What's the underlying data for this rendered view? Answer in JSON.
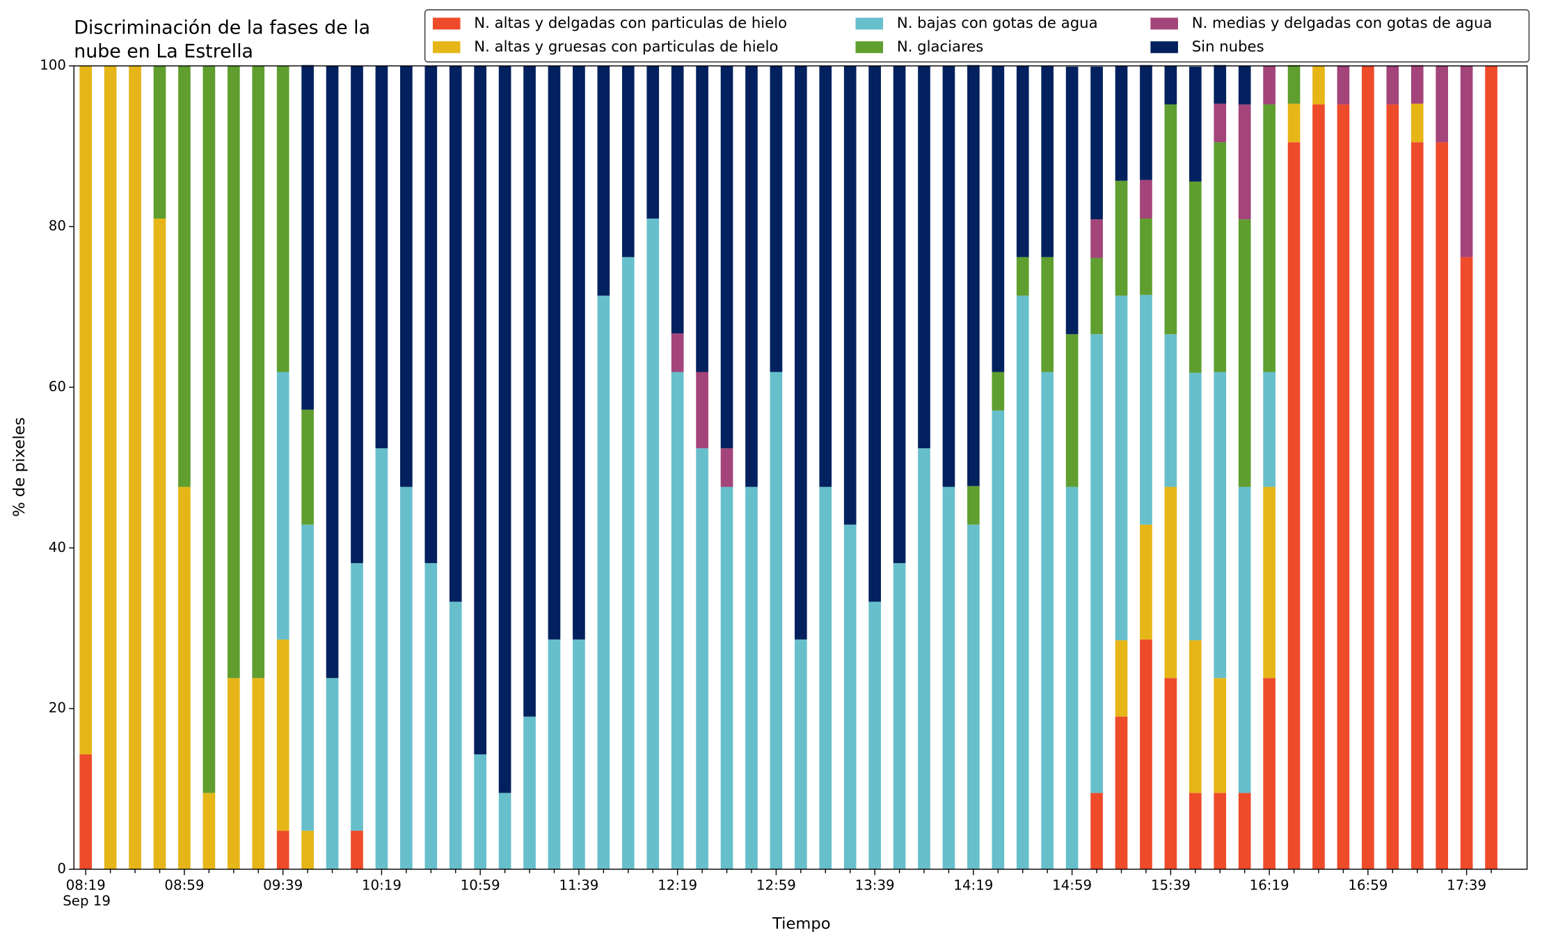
{
  "chart_data": {
    "type": "stacked_bar",
    "title": [
      "Discriminación de la fases de la",
      "nube en La Estrella"
    ],
    "xlabel": "Tiempo",
    "ylabel": "% de pixeles",
    "x_sublabel": "Sep 19",
    "categories": [
      "08:19",
      null,
      null,
      null,
      "08:59",
      null,
      null,
      null,
      "09:39",
      null,
      null,
      null,
      "10:19",
      null,
      null,
      null,
      "10:59",
      null,
      null,
      null,
      "11:39",
      null,
      null,
      null,
      "12:19",
      null,
      null,
      null,
      "12:59",
      null,
      null,
      null,
      "13:39",
      null,
      null,
      null,
      "14:19",
      null,
      null,
      null,
      "14:59",
      null,
      null,
      null,
      "15:39",
      null,
      null,
      null,
      "16:19",
      null,
      null,
      null,
      "16:59",
      null,
      null,
      null,
      "17:39",
      null
    ],
    "ylim": [
      0,
      100
    ],
    "yticks": [
      0,
      20,
      40,
      60,
      80,
      100
    ],
    "legend": "top-right",
    "series": [
      {
        "name": "N. altas y delgadas con particulas de hielo",
        "color": "#ee4b2b",
        "values": [
          14.3,
          0,
          0,
          0,
          0,
          0,
          0,
          0,
          4.8,
          0,
          0,
          4.8,
          0,
          0,
          0,
          0,
          0,
          0,
          0,
          0,
          0,
          0,
          0,
          0,
          0,
          0,
          0,
          0,
          0,
          0,
          0,
          0,
          0,
          0,
          0,
          0,
          0,
          0,
          0,
          0,
          0,
          9.5,
          19,
          28.6,
          23.8,
          9.5,
          9.5,
          9.5,
          23.8,
          90.5,
          95.2,
          95.2,
          100,
          95.2,
          90.5,
          90.5,
          76.2,
          100
        ]
      },
      {
        "name": "N. altas y gruesas con particulas de hielo",
        "color": "#e6b619",
        "values": [
          85.7,
          100,
          100,
          81,
          47.6,
          9.5,
          23.8,
          23.8,
          23.8,
          4.8,
          0,
          0,
          0,
          0,
          0,
          0,
          0,
          0,
          0,
          0,
          0,
          0,
          0,
          0,
          0,
          0,
          0,
          0,
          0,
          0,
          0,
          0,
          0,
          0,
          0,
          0,
          0,
          0,
          0,
          0,
          0,
          0,
          9.5,
          14.3,
          23.8,
          19,
          14.3,
          0,
          23.8,
          4.8,
          4.8,
          0,
          0,
          0,
          4.8,
          0,
          0,
          0
        ]
      },
      {
        "name": "N. bajas con gotas de agua",
        "color": "#67bfcb",
        "values": [
          0,
          0,
          0,
          0,
          0,
          0,
          0,
          0,
          33.3,
          38.1,
          23.8,
          33.3,
          52.4,
          47.6,
          38.1,
          33.3,
          14.3,
          9.5,
          19,
          28.6,
          28.6,
          71.4,
          76.2,
          81,
          61.9,
          52.4,
          47.6,
          47.6,
          61.9,
          28.6,
          47.6,
          42.9,
          33.3,
          38.1,
          52.4,
          47.6,
          42.9,
          57.1,
          71.4,
          61.9,
          47.6,
          57.1,
          42.9,
          28.6,
          19,
          33.3,
          38.1,
          38.1,
          14.3,
          0,
          0,
          0,
          0,
          0,
          0,
          0,
          0,
          0
        ]
      },
      {
        "name": "N. glaciares",
        "color": "#5f9e2f",
        "values": [
          0,
          0,
          0,
          19,
          52.4,
          90.5,
          76.2,
          76.2,
          38.1,
          14.3,
          0,
          0,
          0,
          0,
          0,
          0,
          0,
          0,
          0,
          0,
          0,
          0,
          0,
          0,
          0,
          0,
          0,
          0,
          0,
          0,
          0,
          0,
          0,
          0,
          0,
          0,
          4.8,
          4.8,
          4.8,
          14.3,
          19,
          9.5,
          14.3,
          9.5,
          28.6,
          23.8,
          28.6,
          33.3,
          33.3,
          4.8,
          0,
          0,
          0,
          0,
          0,
          0,
          0,
          0
        ]
      },
      {
        "name": "N. medias y delgadas con gotas de agua",
        "color": "#a3447a",
        "values": [
          0,
          0,
          0,
          0,
          0,
          0,
          0,
          0,
          0,
          0,
          0,
          0,
          0,
          0,
          0,
          0,
          0,
          0,
          0,
          0,
          0,
          0,
          0,
          0,
          4.8,
          9.5,
          4.8,
          0,
          0,
          0,
          0,
          0,
          0,
          0,
          0,
          0,
          0,
          0,
          0,
          0,
          0,
          4.8,
          0,
          4.8,
          0,
          0,
          4.8,
          14.3,
          4.8,
          0,
          0,
          4.8,
          0,
          4.8,
          4.8,
          9.5,
          23.8,
          0
        ]
      },
      {
        "name": "Sin nubes",
        "color": "#03215e",
        "values": [
          0,
          0,
          0,
          0,
          0,
          0,
          0,
          0,
          0,
          42.9,
          76.2,
          61.9,
          47.6,
          52.4,
          61.9,
          66.7,
          85.7,
          90.5,
          81,
          71.4,
          71.4,
          28.6,
          23.8,
          19,
          33.3,
          38.1,
          47.6,
          52.4,
          38.1,
          71.4,
          52.4,
          57.1,
          66.7,
          61.9,
          47.6,
          52.4,
          52.4,
          38.1,
          23.8,
          23.8,
          33.3,
          19,
          14.3,
          14.3,
          4.8,
          14.3,
          4.8,
          4.8,
          0,
          0,
          0,
          0,
          0,
          0,
          0,
          0,
          0,
          0
        ]
      }
    ]
  }
}
